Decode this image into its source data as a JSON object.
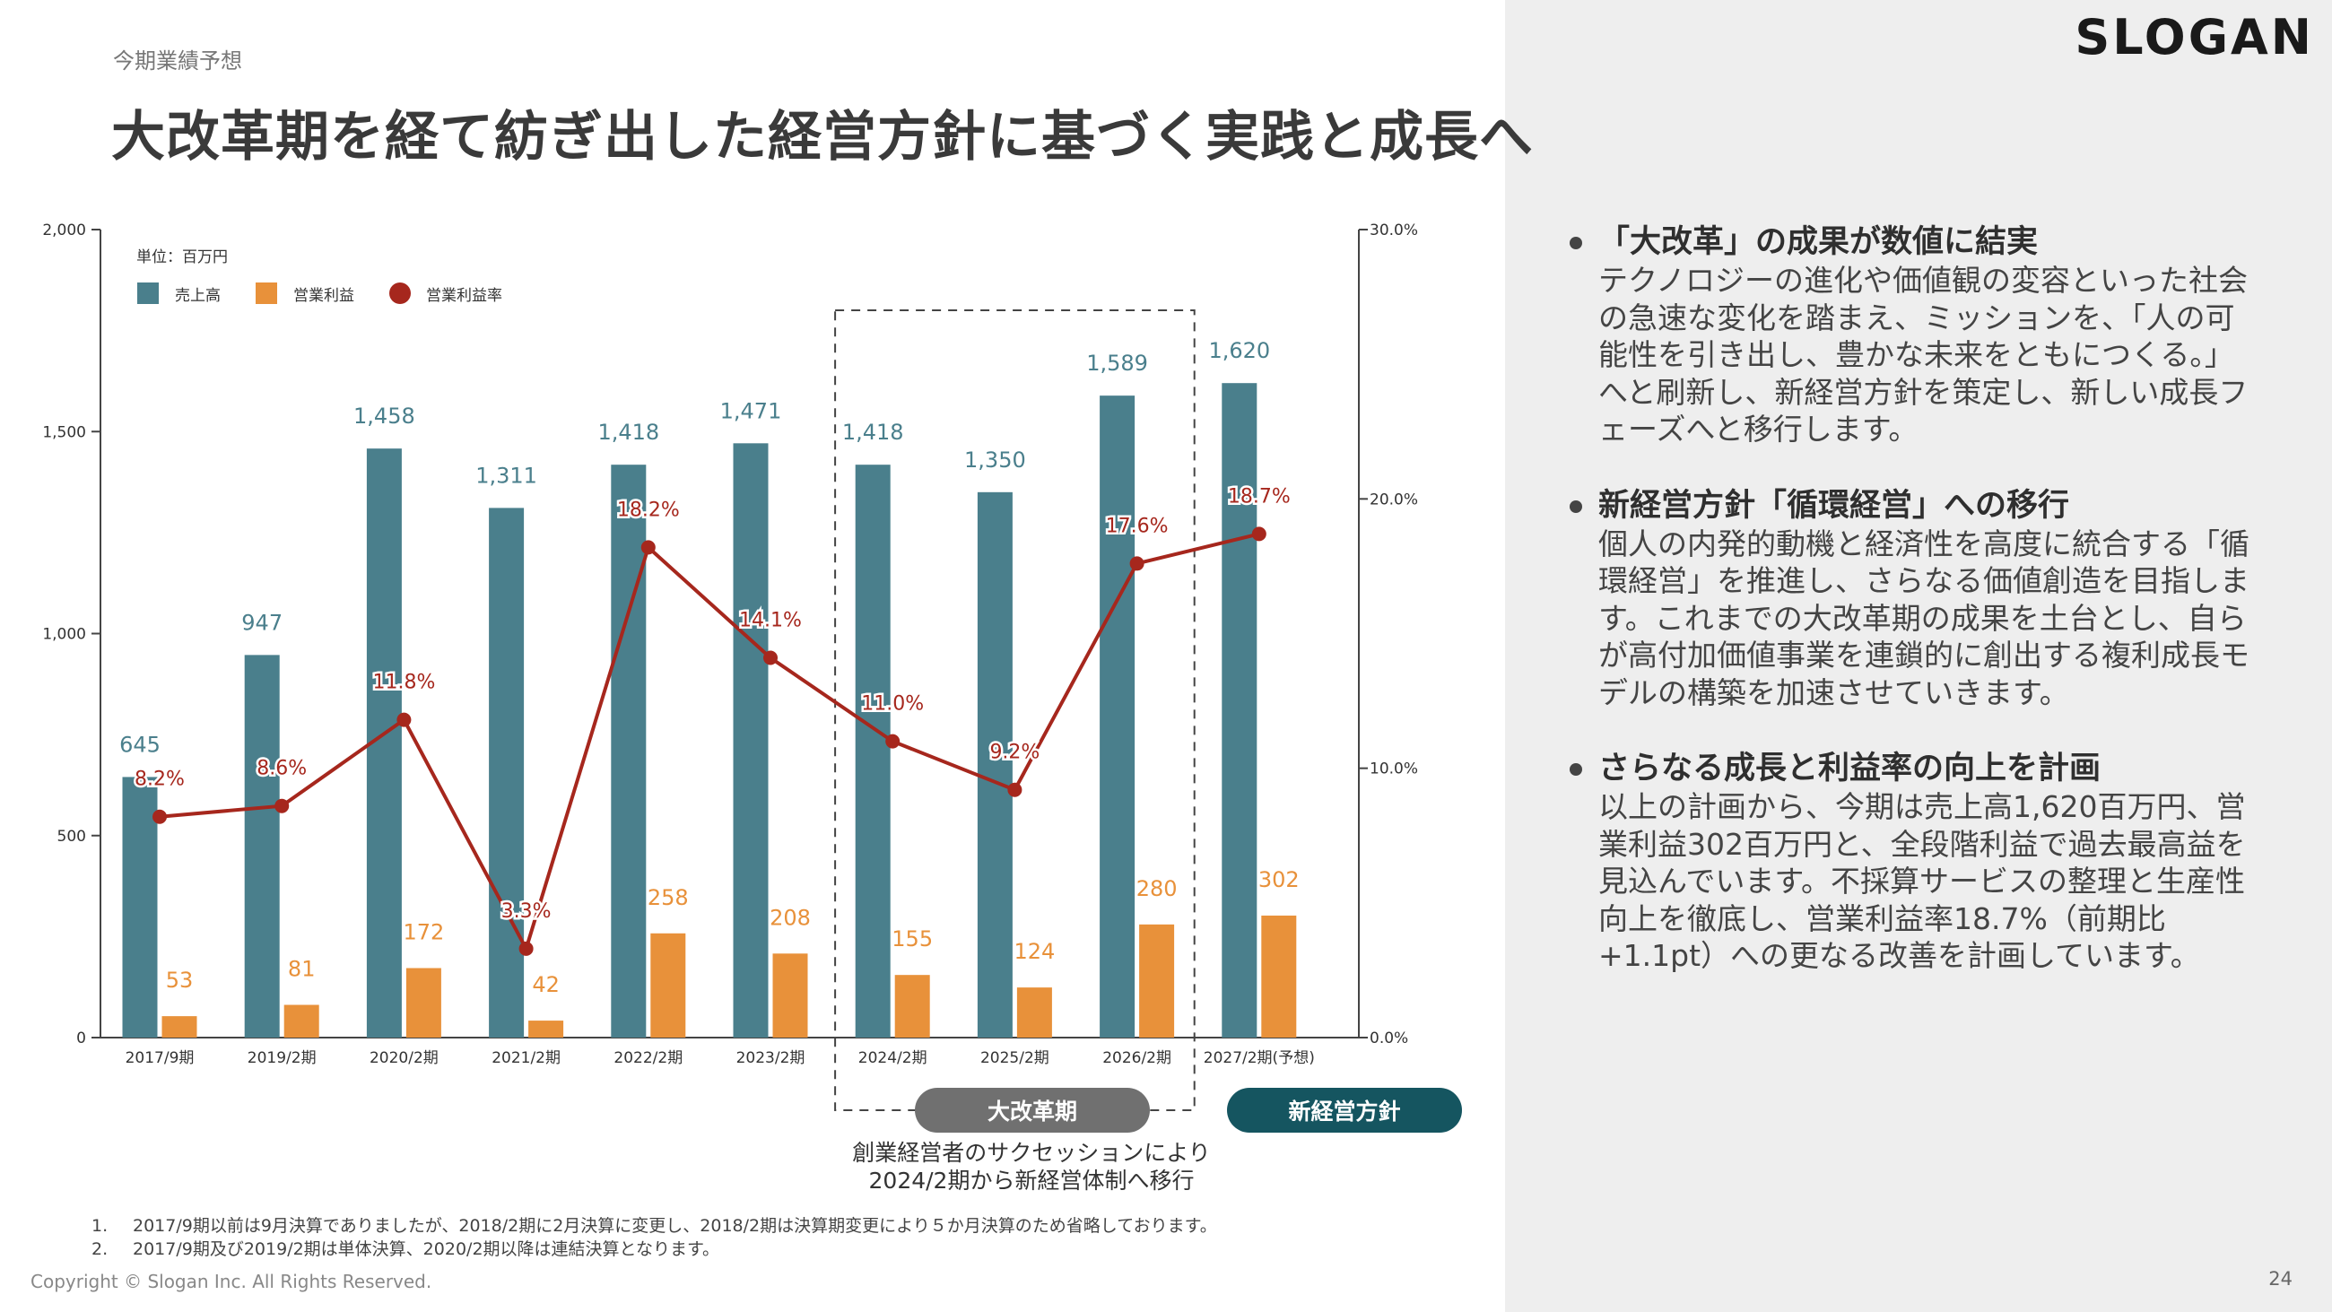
{
  "header": {
    "section_label": "今期業績予想",
    "title": "大改革期を経て紡ぎ出した経営方針に基づく実践と成長へ",
    "logo": "SLOGAN"
  },
  "chart_data": {
    "type": "bar",
    "unit_label": "単位：百万円",
    "categories": [
      "2017/9期",
      "2019/2期",
      "2020/2期",
      "2021/2期",
      "2022/2期",
      "2023/2期",
      "2024/2期",
      "2025/2期",
      "2026/2期",
      "2027/2期(予想)"
    ],
    "series": [
      {
        "name": "売上高",
        "type": "bar",
        "color": "#4a7f8c",
        "axis": "left",
        "values": [
          645,
          947,
          1458,
          1311,
          1418,
          1471,
          1418,
          1350,
          1589,
          1620
        ],
        "labels": [
          "645",
          "947",
          "1,458",
          "1,311",
          "1,418",
          "1,471",
          "1,418",
          "1,350",
          "1,589",
          "1,620"
        ]
      },
      {
        "name": "営業利益",
        "type": "bar",
        "color": "#e8913a",
        "axis": "left",
        "values": [
          53,
          81,
          172,
          42,
          258,
          208,
          155,
          124,
          280,
          302
        ],
        "labels": [
          "53",
          "81",
          "172",
          "42",
          "258",
          "208",
          "155",
          "124",
          "280",
          "302"
        ]
      },
      {
        "name": "営業利益率",
        "type": "line",
        "color": "#a6271d",
        "axis": "right",
        "values": [
          8.2,
          8.6,
          11.8,
          3.3,
          18.2,
          14.1,
          11.0,
          9.2,
          17.6,
          18.7
        ],
        "labels": [
          "8.2%",
          "8.6%",
          "11.8%",
          "3.3%",
          "18.2%",
          "14.1%",
          "11.0%",
          "9.2%",
          "17.6%",
          "18.7%"
        ]
      }
    ],
    "y_left": {
      "min": 0,
      "max": 2000,
      "ticks": [
        0,
        500,
        1000,
        1500,
        2000
      ],
      "tick_labels": [
        "0",
        "500",
        "1,000",
        "1,500",
        "2,000"
      ]
    },
    "y_right": {
      "min": 0,
      "max": 30,
      "ticks": [
        0,
        10,
        20,
        30
      ],
      "tick_labels": [
        "0.0%",
        "10.0%",
        "20.0%",
        "30.0%"
      ]
    },
    "grid": false,
    "legend_position": "top-left"
  },
  "annotations": {
    "reform_badge": "大改革期",
    "new_policy_badge": "新経営方針",
    "succession_note_line1": "創業経営者のサクセッションにより",
    "succession_note_line2": "2024/2期から新経営体制へ移行"
  },
  "bullets": [
    {
      "title": "「大改革」の成果が数値に結実",
      "body": "テクノロジーの進化や価値観の変容といった社会の急速な変化を踏まえ、ミッションを、「人の可能性を引き出し、豊かな未来をともにつくる。」へと刷新し、新経営方針を策定し、新しい成長フェーズへと移行します。"
    },
    {
      "title": "新経営方針「循環経営」への移行",
      "body": "個人の内発的動機と経済性を高度に統合する「循環経営」を推進し、さらなる価値創造を目指します。これまでの大改革期の成果を土台とし、自らが高付加価値事業を連鎖的に創出する複利成長モデルの構築を加速させていきます。"
    },
    {
      "title": "さらなる成長と利益率の向上を計画",
      "body": "以上の計画から、今期は売上高1,620百万円、営業利益302百万円と、全段階利益で過去最高益を見込んでいます。不採算サービスの整理と生産性向上を徹底し、営業利益率18.7%（前期比+1.1pt）への更なる改善を計画しています。"
    }
  ],
  "footnotes": [
    {
      "num": "1.",
      "text": "2017/9期以前は9月決算でありましたが、2018/2期に2月決算に変更し、2018/2期は決算期変更により５か月決算のため省略しております。"
    },
    {
      "num": "2.",
      "text": "2017/9期及び2019/2期は単体決算、2020/2期以降は連結決算となります。"
    }
  ],
  "footer": {
    "copyright": "Copyright © Slogan Inc. All Rights Reserved.",
    "page_number": "24"
  }
}
